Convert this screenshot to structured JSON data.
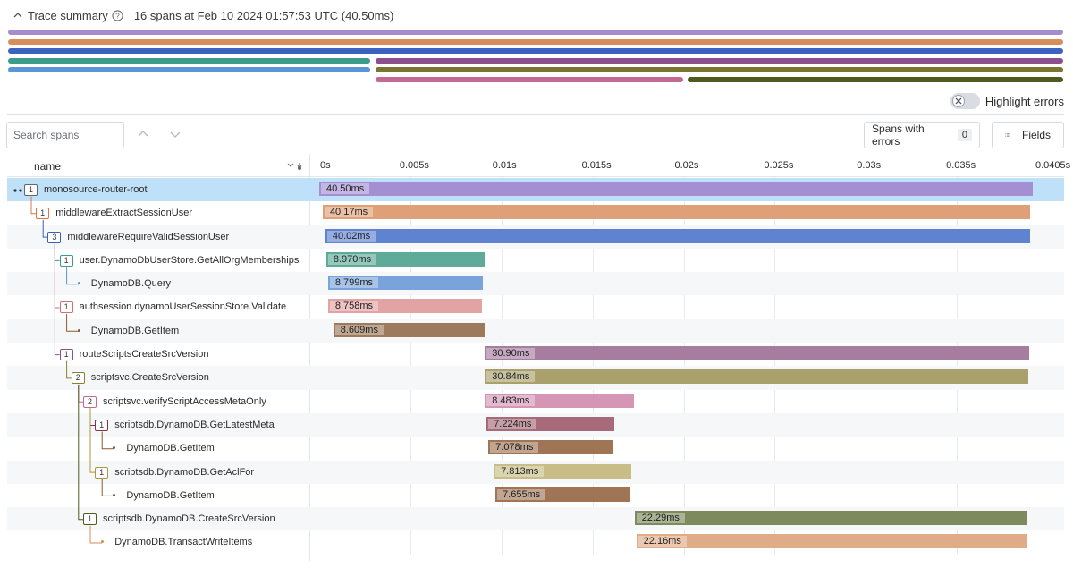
{
  "summary": {
    "title": "Trace summary",
    "details": "16 spans at Feb 10 2024 01:57:53 UTC (40.50ms)"
  },
  "highlight_errors": {
    "label": "Highlight errors",
    "enabled": false
  },
  "search": {
    "placeholder": "Search spans"
  },
  "toolbar": {
    "errors_label": "Spans with errors",
    "errors_count": "0",
    "fields_label": "Fields"
  },
  "columns": {
    "name": "name"
  },
  "timeline": {
    "total_ms": 40.5,
    "ticks": [
      "0s",
      "0.005s",
      "0.01s",
      "0.015s",
      "0.02s",
      "0.025s",
      "0.03s",
      "0.035s",
      "0.0405s"
    ]
  },
  "overview": [
    {
      "row": 0,
      "start": 0.0,
      "dur": 40.5,
      "color": "#a68cce"
    },
    {
      "row": 1,
      "start": 0.0,
      "dur": 40.5,
      "color": "#d98d5a"
    },
    {
      "row": 2,
      "start": 0.0,
      "dur": 40.5,
      "color": "#3d63c0"
    },
    {
      "row": 3,
      "start": 0.0,
      "dur": 13.9,
      "color": "#3b9c8c"
    },
    {
      "row": 3,
      "start": 14.1,
      "dur": 26.4,
      "color": "#8e4f8e"
    },
    {
      "row": 4,
      "start": 0.0,
      "dur": 13.9,
      "color": "#5a95d6"
    },
    {
      "row": 4,
      "start": 14.1,
      "dur": 26.4,
      "color": "#7a7530"
    },
    {
      "row": 5,
      "start": 14.1,
      "dur": 11.8,
      "color": "#c06a95"
    },
    {
      "row": 5,
      "start": 26.1,
      "dur": 14.4,
      "color": "#4e5b1f"
    }
  ],
  "spans": [
    {
      "name": "monosource-router-root",
      "depth": 0,
      "children": "1",
      "start": 0.0,
      "dur": 40.5,
      "label": "40.50ms",
      "color": "#a58fd3",
      "selected": true
    },
    {
      "name": "middlewareExtractSessionUser",
      "depth": 1,
      "children": "1",
      "start": 0.2,
      "dur": 40.17,
      "label": "40.17ms",
      "color": "#e0a077",
      "tree": "#d9774a"
    },
    {
      "name": "middlewareRequireValidSessionUser",
      "depth": 2,
      "children": "3",
      "start": 0.35,
      "dur": 40.02,
      "label": "40.02ms",
      "color": "#5f82d1",
      "tree": "#3b5fbf"
    },
    {
      "name": "user.DynamoDbUserStore.GetAllOrgMemberships",
      "depth": 3,
      "children": "1",
      "start": 0.4,
      "dur": 8.97,
      "label": "8.970ms",
      "color": "#5fab9a",
      "tree": "#3b9c8c"
    },
    {
      "name": "DynamoDB.Query",
      "depth": 4,
      "children": "",
      "start": 0.5,
      "dur": 8.799,
      "label": "8.799ms",
      "color": "#7aa3dc",
      "tree": "#5a95d6"
    },
    {
      "name": "authsession.dynamoUserSessionStore.Validate",
      "depth": 3,
      "children": "1",
      "start": 0.5,
      "dur": 8.758,
      "label": "8.758ms",
      "color": "#e3a3a3",
      "tree": "#d07070"
    },
    {
      "name": "DynamoDB.GetItem",
      "depth": 4,
      "children": "",
      "start": 0.8,
      "dur": 8.609,
      "label": "8.609ms",
      "color": "#9c7a5b",
      "tree": "#8a5a30"
    },
    {
      "name": "routeScriptsCreateSrcVersion",
      "depth": 3,
      "children": "1",
      "start": 9.4,
      "dur": 30.9,
      "label": "30.90ms",
      "color": "#a67c9f",
      "tree": "#8e4f8e"
    },
    {
      "name": "scriptsvc.CreateSrcVersion",
      "depth": 4,
      "children": "2",
      "start": 9.4,
      "dur": 30.84,
      "label": "30.84ms",
      "color": "#a9a06c",
      "tree": "#8a8030"
    },
    {
      "name": "scriptsvc.verifyScriptAccessMetaOnly",
      "depth": 5,
      "children": "2",
      "start": 9.4,
      "dur": 8.483,
      "label": "8.483ms",
      "color": "#d596b6",
      "tree": "#c06a95"
    },
    {
      "name": "scriptsdb.DynamoDB.GetLatestMeta",
      "depth": 6,
      "children": "1",
      "start": 9.5,
      "dur": 7.224,
      "label": "7.224ms",
      "color": "#a66a7a",
      "tree": "#8a2f45"
    },
    {
      "name": "DynamoDB.GetItem",
      "depth": 7,
      "children": "",
      "start": 9.6,
      "dur": 7.078,
      "label": "7.078ms",
      "color": "#a07555",
      "tree": "#8a5a30"
    },
    {
      "name": "scriptsdb.DynamoDB.GetAclFor",
      "depth": 6,
      "children": "1",
      "start": 9.9,
      "dur": 7.813,
      "label": "7.813ms",
      "color": "#c8bd86",
      "tree": "#a89840"
    },
    {
      "name": "DynamoDB.GetItem",
      "depth": 7,
      "children": "",
      "start": 10.0,
      "dur": 7.655,
      "label": "7.655ms",
      "color": "#a07555",
      "tree": "#8a5a30"
    },
    {
      "name": "scriptsdb.DynamoDB.CreateSrcVersion",
      "depth": 5,
      "children": "1",
      "start": 17.9,
      "dur": 22.29,
      "label": "22.29ms",
      "color": "#7d8a5c",
      "tree": "#4e5b1f"
    },
    {
      "name": "DynamoDB.TransactWriteItems",
      "depth": 6,
      "children": "",
      "start": 18.0,
      "dur": 22.16,
      "label": "22.16ms",
      "color": "#e0ab88",
      "tree": "#d98d5a"
    }
  ]
}
